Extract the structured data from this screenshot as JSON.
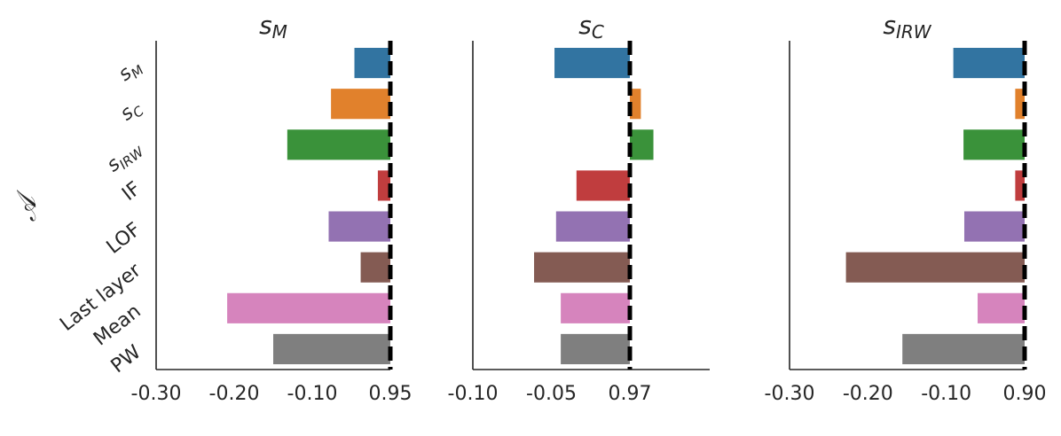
{
  "chart_data": {
    "type": "bar",
    "orientation": "horizontal",
    "ylabel": "𝒜",
    "categories": [
      {
        "base": "s",
        "sub": "M"
      },
      {
        "base": "s",
        "sub": "C"
      },
      {
        "base": "s",
        "sub": "IRW"
      },
      {
        "base": "IF",
        "sub": ""
      },
      {
        "base": "LOF",
        "sub": ""
      },
      {
        "base": "Last layer",
        "sub": ""
      },
      {
        "base": "Mean",
        "sub": ""
      },
      {
        "base": "PW",
        "sub": ""
      }
    ],
    "colors": [
      "#3274a1",
      "#e1812c",
      "#3a923a",
      "#c03d3e",
      "#9372b2",
      "#845b53",
      "#d684bd",
      "#7f7f7f"
    ],
    "panels": [
      {
        "title": {
          "base": "s",
          "sub": "M"
        },
        "reference_label": "0.95",
        "xlim": [
          -0.3,
          0.0
        ],
        "ticks": [
          {
            "value": -0.3,
            "label": "-0.30"
          },
          {
            "value": -0.2,
            "label": "-0.20"
          },
          {
            "value": -0.1,
            "label": "-0.10"
          },
          {
            "value": 0.0,
            "label": "0.95"
          }
        ],
        "values": [
          -0.046,
          -0.076,
          -0.132,
          -0.016,
          -0.079,
          -0.038,
          -0.209,
          -0.15
        ]
      },
      {
        "title": {
          "base": "s",
          "sub": "C"
        },
        "reference_label": "0.97",
        "xlim": [
          -0.1,
          0.05
        ],
        "ticks": [
          {
            "value": -0.1,
            "label": "-0.10"
          },
          {
            "value": -0.05,
            "label": "-0.05"
          },
          {
            "value": 0.0,
            "label": "0.97"
          }
        ],
        "values": [
          -0.048,
          0.007,
          0.015,
          -0.034,
          -0.047,
          -0.061,
          -0.044,
          -0.044
        ]
      },
      {
        "title": {
          "base": "s",
          "sub": "IRW"
        },
        "reference_label": "0.90",
        "xlim": [
          -0.3,
          0.0
        ],
        "ticks": [
          {
            "value": -0.3,
            "label": "-0.30"
          },
          {
            "value": -0.2,
            "label": "-0.20"
          },
          {
            "value": -0.1,
            "label": "-0.10"
          },
          {
            "value": 0.0,
            "label": "0.90"
          }
        ],
        "values": [
          -0.091,
          -0.012,
          -0.078,
          -0.012,
          -0.077,
          -0.228,
          -0.06,
          -0.156
        ]
      }
    ]
  }
}
